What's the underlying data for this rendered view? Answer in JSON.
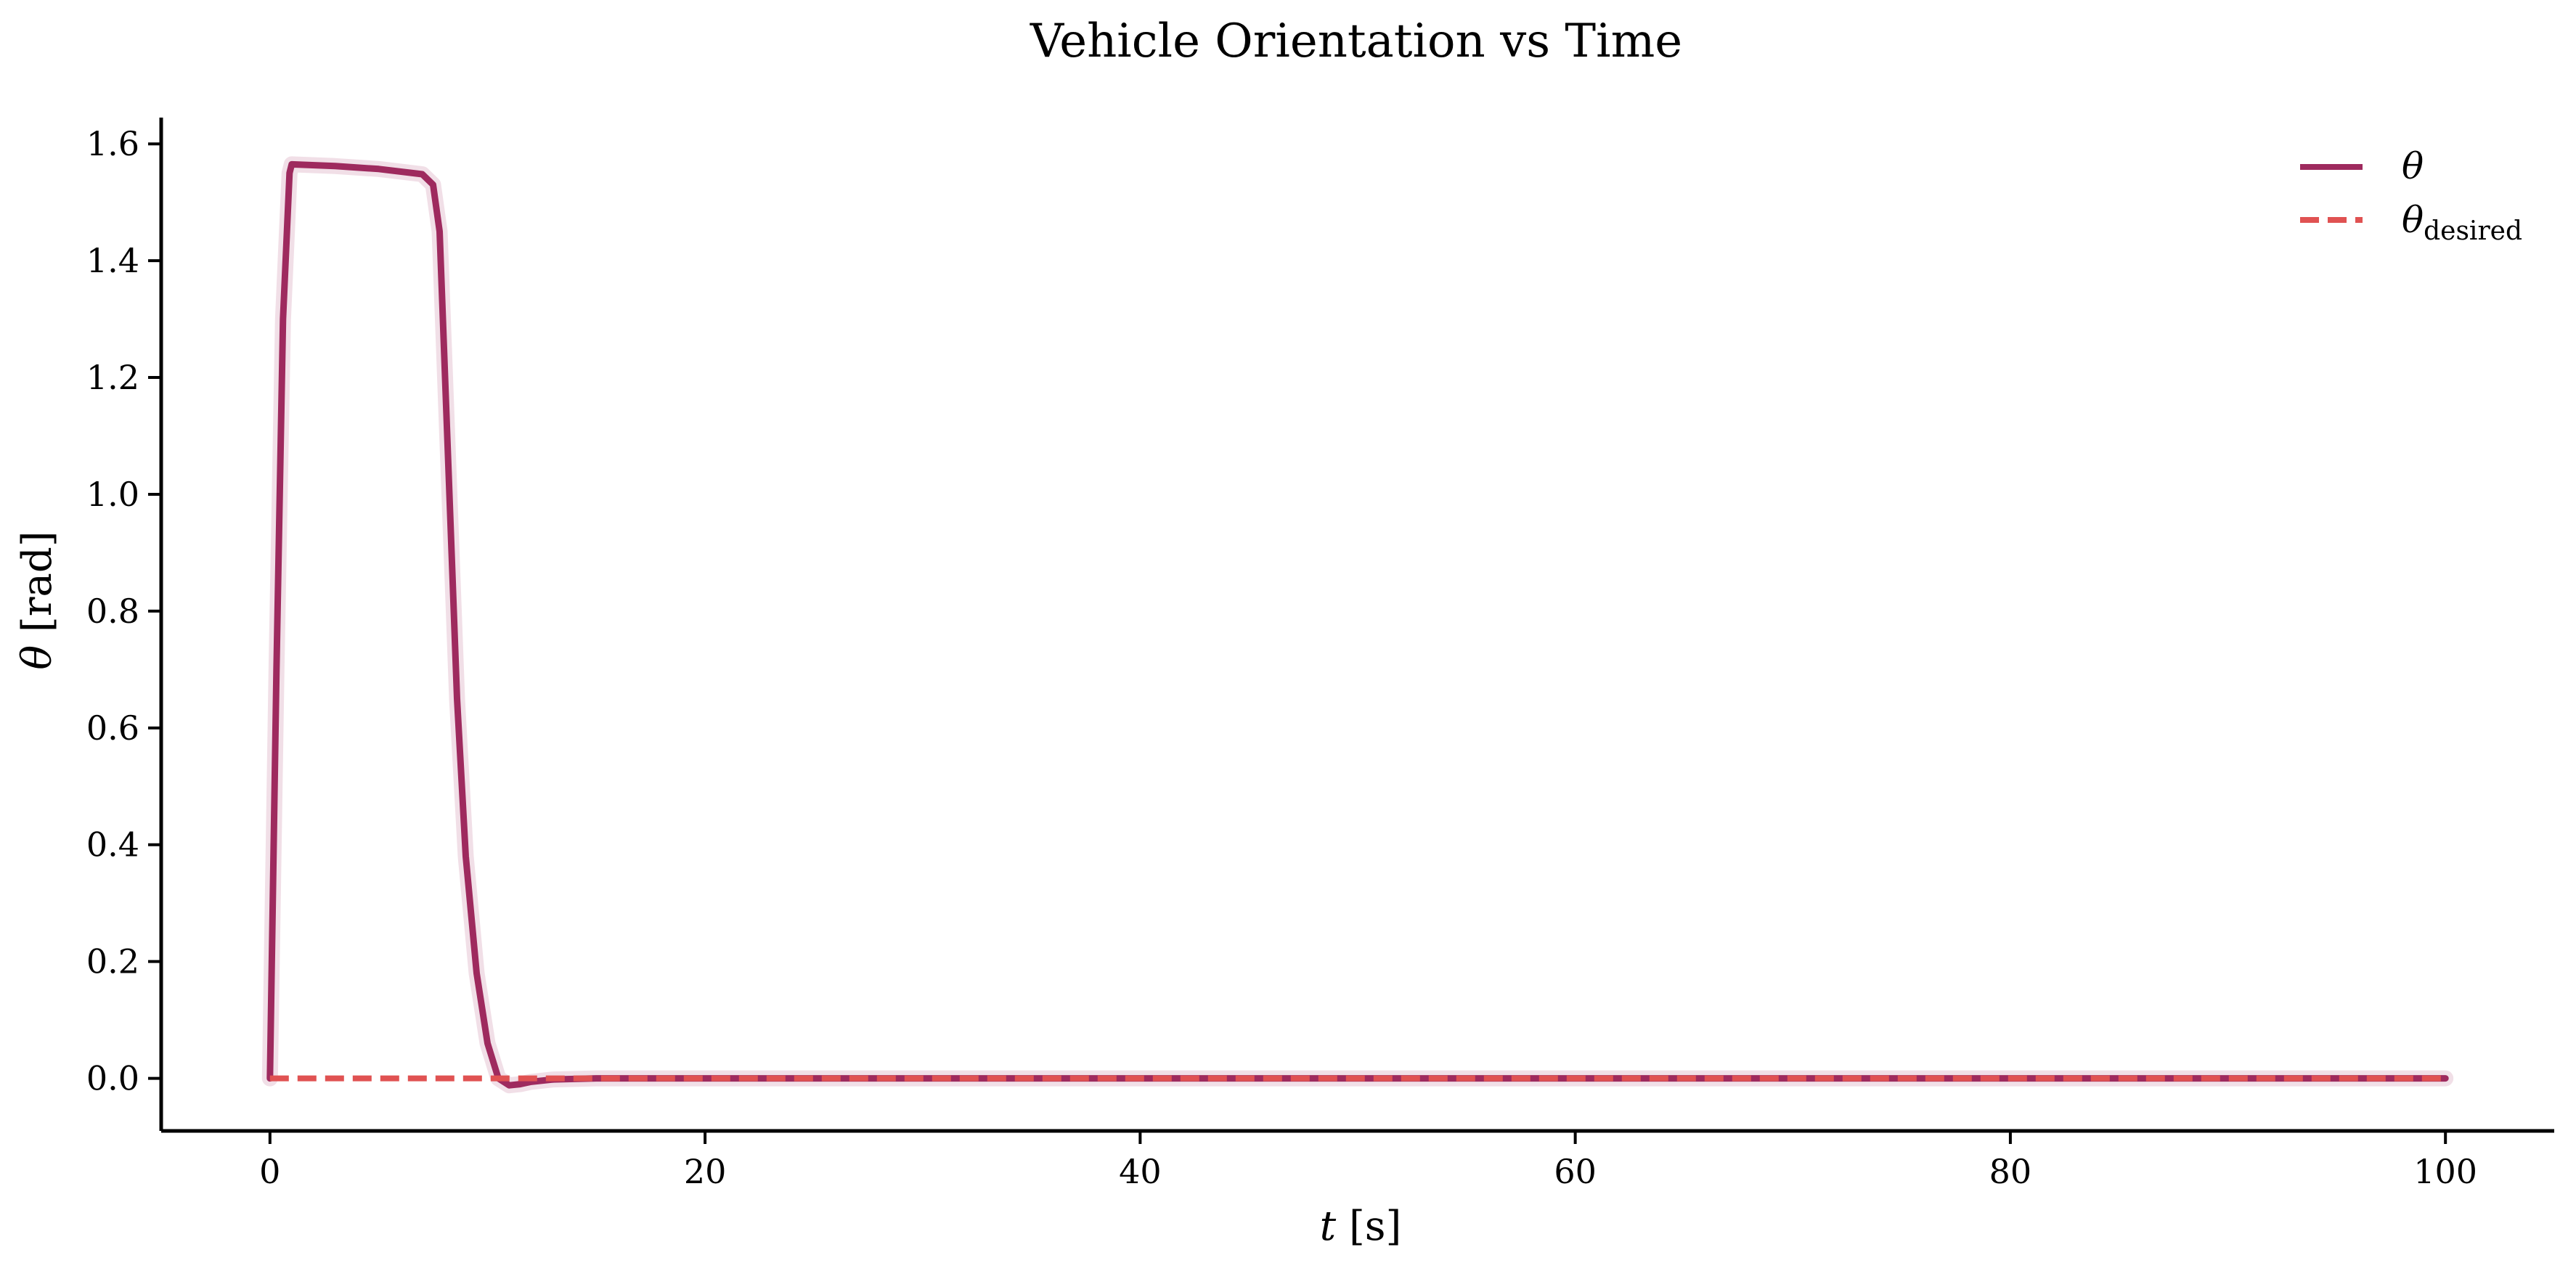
{
  "chart_data": {
    "type": "line",
    "title": "Vehicle Orientation vs Time",
    "xlabel_var": "t",
    "xlabel_unit": " [s]",
    "ylabel_var": "θ",
    "ylabel_unit": " [rad]",
    "xlim": [
      -5,
      105
    ],
    "ylim": [
      -0.09,
      1.645
    ],
    "xticks": [
      0,
      20,
      40,
      60,
      80,
      100
    ],
    "yticks": [
      0.0,
      0.2,
      0.4,
      0.6,
      0.8,
      1.0,
      1.2,
      1.4,
      1.6
    ],
    "grid": false,
    "legend_position": "top-right",
    "series": [
      {
        "name_main": "θ",
        "name_sub": "",
        "color": "#9e2a5e",
        "style": "solid",
        "x": [
          0,
          0.3,
          0.6,
          0.9,
          1.0,
          3,
          5,
          7,
          7.5,
          7.8,
          8.0,
          8.3,
          8.6,
          9.0,
          9.5,
          10.0,
          10.5,
          11.0,
          11.5,
          12.0,
          13.0,
          15,
          20,
          40,
          60,
          80,
          100
        ],
        "y": [
          0,
          0.7,
          1.3,
          1.55,
          1.565,
          1.562,
          1.557,
          1.548,
          1.53,
          1.45,
          1.25,
          0.95,
          0.65,
          0.38,
          0.18,
          0.06,
          0.0,
          -0.012,
          -0.01,
          -0.006,
          -0.002,
          0,
          0,
          0,
          0,
          0,
          0
        ]
      },
      {
        "name_main": "θ",
        "name_sub": "desired",
        "color": "#e05252",
        "style": "dashed",
        "x": [
          0,
          100
        ],
        "y": [
          0,
          0
        ]
      }
    ]
  }
}
